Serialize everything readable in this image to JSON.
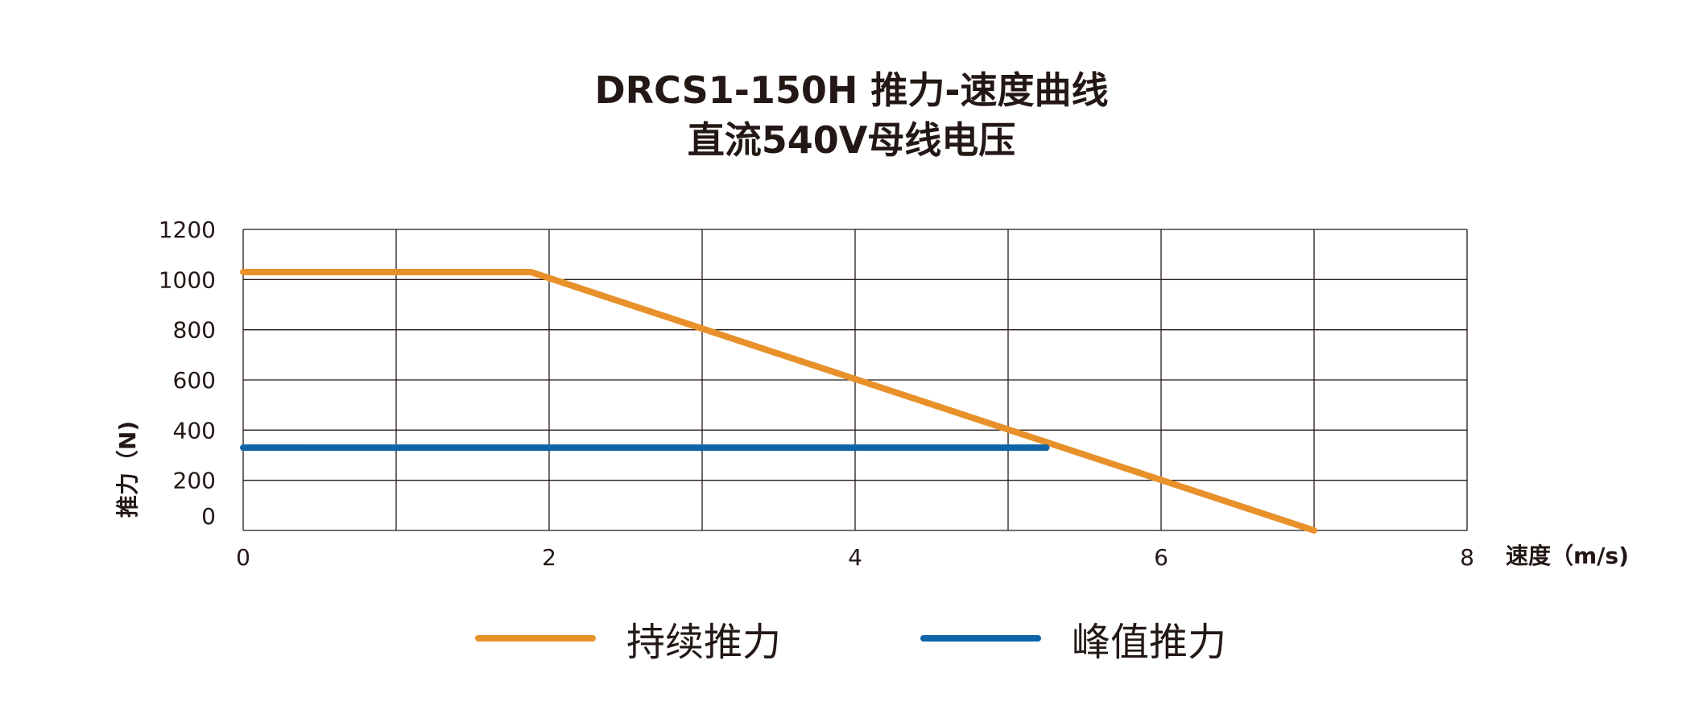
{
  "title": "DRCS1-150H 推力-速度曲线",
  "subtitle": "直流540V母线电压",
  "chart_data": {
    "type": "line",
    "title": "DRCS1-150H 推力-速度曲线",
    "subtitle": "直流540V母线电压",
    "xlabel": "速度（m/s)",
    "ylabel": "推力（N)",
    "xlim": [
      0,
      8
    ],
    "ylim": [
      0,
      1200
    ],
    "x_ticks": [
      0,
      2,
      4,
      6,
      8
    ],
    "y_ticks": [
      0,
      200,
      400,
      600,
      800,
      1000,
      1200
    ],
    "grid": true,
    "legend_position": "bottom",
    "series": [
      {
        "name": "持续推力",
        "color": "#E8912B",
        "x": [
          0,
          1.88,
          7.0
        ],
        "y": [
          1030,
          1030,
          0
        ]
      },
      {
        "name": "峰值推力",
        "color": "#0F64A8",
        "x": [
          0,
          5.25
        ],
        "y": [
          330,
          330
        ]
      }
    ]
  }
}
